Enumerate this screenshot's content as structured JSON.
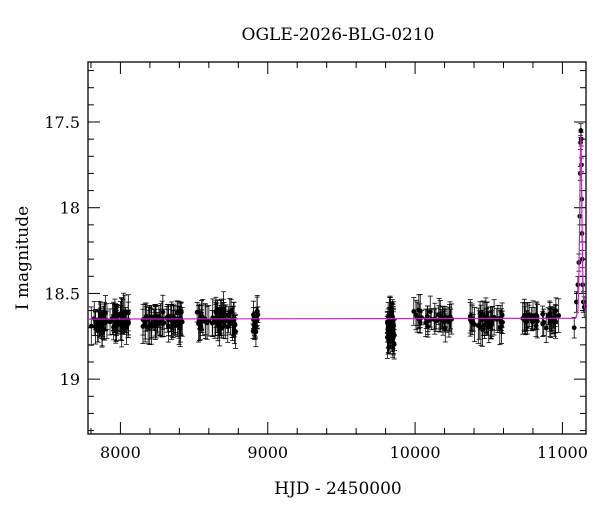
{
  "chart_data": {
    "type": "scatter",
    "title": "OGLE-2026-BLG-0210",
    "xlabel": "HJD - 2450000",
    "ylabel": "I magnitude",
    "xlim": [
      7780,
      11160
    ],
    "ylim": [
      19.32,
      17.15
    ],
    "y_inverted": true,
    "x_ticks": [
      8000,
      9000,
      10000,
      11000
    ],
    "y_ticks": [
      17.5,
      18,
      18.5,
      19
    ],
    "y_tick_labels": [
      "17.5",
      "18",
      "18.5",
      "19"
    ],
    "colors": {
      "data": "#000000",
      "model": "#cc22cc"
    },
    "baseline_magnitude": 18.65,
    "series": [
      {
        "type": "season_band",
        "seasons": [
          {
            "x_start": 7800,
            "x_end": 8060,
            "mag_center": 18.66,
            "mag_spread": 0.09,
            "err": 0.08,
            "n": 60
          },
          {
            "x_start": 8150,
            "x_end": 8430,
            "mag_center": 18.66,
            "mag_spread": 0.09,
            "err": 0.08,
            "n": 60
          },
          {
            "x_start": 8520,
            "x_end": 8790,
            "mag_center": 18.66,
            "mag_spread": 0.1,
            "err": 0.08,
            "n": 60
          },
          {
            "x_start": 8900,
            "x_end": 8935,
            "mag_center": 18.66,
            "mag_spread": 0.12,
            "err": 0.07,
            "n": 14
          },
          {
            "x_start": 9810,
            "x_end": 9860,
            "mag_center": 18.7,
            "mag_spread": 0.16,
            "err": 0.1,
            "n": 40
          },
          {
            "x_start": 9990,
            "x_end": 10250,
            "mag_center": 18.65,
            "mag_spread": 0.07,
            "err": 0.07,
            "n": 40
          },
          {
            "x_start": 10370,
            "x_end": 10600,
            "mag_center": 18.66,
            "mag_spread": 0.08,
            "err": 0.08,
            "n": 40
          },
          {
            "x_start": 10730,
            "x_end": 10980,
            "mag_center": 18.65,
            "mag_spread": 0.07,
            "err": 0.07,
            "n": 40
          }
        ]
      },
      {
        "type": "event_points",
        "x": [
          11080,
          11095,
          11105,
          11112,
          11118,
          11121,
          11123,
          11125,
          11127,
          11129,
          11131,
          11133,
          11135,
          11138,
          11142,
          11148
        ],
        "y": [
          18.7,
          18.55,
          18.45,
          18.32,
          18.05,
          17.8,
          17.62,
          17.55,
          17.6,
          17.75,
          17.95,
          18.15,
          18.3,
          18.45,
          18.55,
          18.58
        ],
        "err": [
          0.06,
          0.06,
          0.05,
          0.05,
          0.05,
          0.04,
          0.04,
          0.04,
          0.04,
          0.04,
          0.05,
          0.05,
          0.05,
          0.05,
          0.06,
          0.06
        ]
      },
      {
        "type": "model",
        "x": [
          7780,
          11090,
          11105,
          11112,
          11118,
          11122,
          11125,
          11128,
          11132,
          11138,
          11145,
          11160
        ],
        "y": [
          18.65,
          18.645,
          18.6,
          18.4,
          18.0,
          17.7,
          17.58,
          17.7,
          18.05,
          18.4,
          18.55,
          18.62
        ]
      }
    ]
  }
}
